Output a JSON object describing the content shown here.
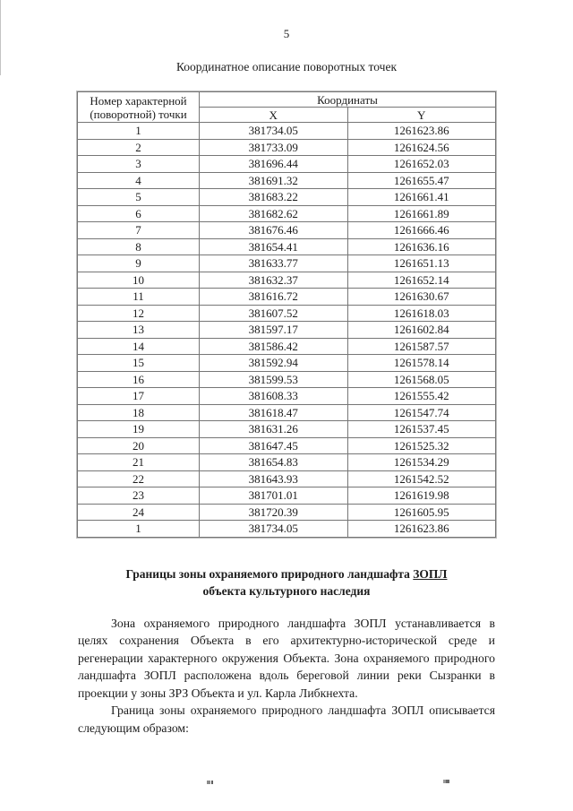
{
  "page": {
    "number": "5"
  },
  "coord_table": {
    "title": "Координатное описание поворотных точек",
    "header": {
      "point_col_line1": "Номер характерной",
      "point_col_line2": "(поворотной) точки",
      "coords_group": "Координаты",
      "x": "X",
      "y": "Y"
    },
    "rows": [
      {
        "n": "1",
        "x": "381734.05",
        "y": "1261623.86"
      },
      {
        "n": "2",
        "x": "381733.09",
        "y": "1261624.56"
      },
      {
        "n": "3",
        "x": "381696.44",
        "y": "1261652.03"
      },
      {
        "n": "4",
        "x": "381691.32",
        "y": "1261655.47"
      },
      {
        "n": "5",
        "x": "381683.22",
        "y": "1261661.41"
      },
      {
        "n": "6",
        "x": "381682.62",
        "y": "1261661.89"
      },
      {
        "n": "7",
        "x": "381676.46",
        "y": "1261666.46"
      },
      {
        "n": "8",
        "x": "381654.41",
        "y": "1261636.16"
      },
      {
        "n": "9",
        "x": "381633.77",
        "y": "1261651.13"
      },
      {
        "n": "10",
        "x": "381632.37",
        "y": "1261652.14"
      },
      {
        "n": "11",
        "x": "381616.72",
        "y": "1261630.67"
      },
      {
        "n": "12",
        "x": "381607.52",
        "y": "1261618.03"
      },
      {
        "n": "13",
        "x": "381597.17",
        "y": "1261602.84"
      },
      {
        "n": "14",
        "x": "381586.42",
        "y": "1261587.57"
      },
      {
        "n": "15",
        "x": "381592.94",
        "y": "1261578.14"
      },
      {
        "n": "16",
        "x": "381599.53",
        "y": "1261568.05"
      },
      {
        "n": "17",
        "x": "381608.33",
        "y": "1261555.42"
      },
      {
        "n": "18",
        "x": "381618.47",
        "y": "1261547.74"
      },
      {
        "n": "19",
        "x": "381631.26",
        "y": "1261537.45"
      },
      {
        "n": "20",
        "x": "381647.45",
        "y": "1261525.32"
      },
      {
        "n": "21",
        "x": "381654.83",
        "y": "1261534.29"
      },
      {
        "n": "22",
        "x": "381643.93",
        "y": "1261542.52"
      },
      {
        "n": "23",
        "x": "381701.01",
        "y": "1261619.98"
      },
      {
        "n": "24",
        "x": "381720.39",
        "y": "1261605.95"
      },
      {
        "n": "1",
        "x": "381734.05",
        "y": "1261623.86"
      }
    ]
  },
  "section": {
    "heading_prefix": "Границы зоны охраняемого природного ландшафта ",
    "heading_underlined": "ЗОПЛ",
    "heading_line2": "объекта культурного наследия",
    "paragraph1": "Зона охраняемого природного ландшафта ЗОПЛ устанавливается в целях сохранения Объекта в его архитектурно-исторической среде и регенерации характерного окружения Объекта. Зона охраняемого природного ландшафта ЗОПЛ расположена вдоль береговой линии реки Сызранки в проекции у зоны ЗРЗ Объекта и ул. Карла Либкнехта.",
    "paragraph2": "Граница зоны охраняемого природного ландшафта ЗОПЛ описывается следующим образом:"
  }
}
